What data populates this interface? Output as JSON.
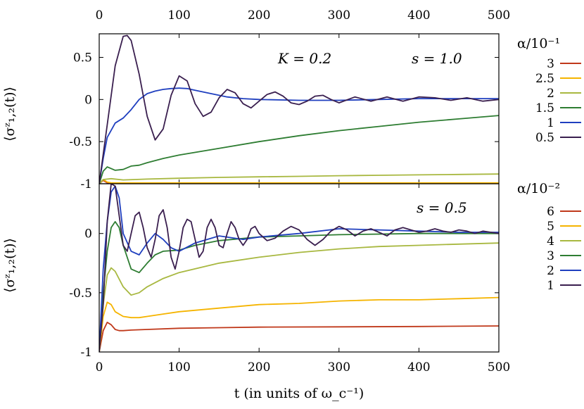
{
  "chart_data": {
    "type": "line",
    "xlabel": "t (in units of ω_c⁻¹)",
    "top_axis_ticks": [
      "0",
      "100",
      "200",
      "300",
      "400",
      "500"
    ],
    "panels": [
      {
        "ylabel": "⟨σᶻ₁,₂(t)⟩",
        "annotations": [
          "K = 0.2",
          "s = 1.0"
        ],
        "xlim": [
          0,
          500
        ],
        "ylim": [
          -1,
          0.78
        ],
        "yticks": [
          -1,
          -0.5,
          0,
          0.5
        ],
        "ytick_labels": [
          "-1",
          "-0.5",
          "0",
          "0.5"
        ],
        "legend_title": "α/10⁻¹",
        "series": [
          {
            "name": "3",
            "color": "#c0391b",
            "x": [
              0,
              5,
              10,
              15,
              500
            ],
            "y": [
              -1,
              -0.96,
              -0.99,
              -0.995,
              -0.995
            ]
          },
          {
            "name": "2.5",
            "color": "#f5b400",
            "x": [
              0,
              5,
              10,
              15,
              500
            ],
            "y": [
              -1,
              -0.95,
              -0.98,
              -0.99,
              -0.99
            ]
          },
          {
            "name": "2",
            "color": "#a8b840",
            "x": [
              0,
              5,
              15,
              30,
              60,
              100,
              150,
              200,
              250,
              300,
              350,
              400,
              450,
              500
            ],
            "y": [
              -1,
              -0.95,
              -0.94,
              -0.955,
              -0.945,
              -0.935,
              -0.925,
              -0.918,
              -0.912,
              -0.905,
              -0.9,
              -0.895,
              -0.89,
              -0.885
            ]
          },
          {
            "name": "1.5",
            "color": "#2e7d32",
            "x": [
              0,
              5,
              10,
              20,
              30,
              40,
              50,
              60,
              80,
              100,
              150,
              200,
              250,
              300,
              350,
              400,
              450,
              500
            ],
            "y": [
              -1,
              -0.85,
              -0.8,
              -0.84,
              -0.83,
              -0.79,
              -0.78,
              -0.75,
              -0.7,
              -0.66,
              -0.58,
              -0.5,
              -0.43,
              -0.37,
              -0.32,
              -0.27,
              -0.23,
              -0.19
            ]
          },
          {
            "name": "1",
            "color": "#1f3fbf",
            "x": [
              0,
              5,
              10,
              20,
              30,
              40,
              50,
              60,
              70,
              80,
              90,
              100,
              110,
              120,
              140,
              160,
              180,
              200,
              250,
              300,
              350,
              400,
              450,
              500
            ],
            "y": [
              -1,
              -0.7,
              -0.45,
              -0.28,
              -0.22,
              -0.12,
              0.0,
              0.07,
              0.1,
              0.12,
              0.13,
              0.135,
              0.13,
              0.11,
              0.07,
              0.03,
              0.01,
              0.0,
              -0.01,
              -0.01,
              0.0,
              0.01,
              0.01,
              0.01
            ]
          },
          {
            "name": "0.5",
            "color": "#3a1f4f",
            "x": [
              0,
              10,
              20,
              30,
              35,
              40,
              50,
              60,
              70,
              80,
              90,
              100,
              110,
              120,
              130,
              140,
              150,
              160,
              170,
              180,
              190,
              200,
              210,
              220,
              230,
              240,
              250,
              260,
              270,
              280,
              290,
              300,
              320,
              340,
              360,
              380,
              400,
              420,
              440,
              460,
              480,
              500
            ],
            "y": [
              -1,
              -0.3,
              0.4,
              0.75,
              0.76,
              0.7,
              0.3,
              -0.2,
              -0.48,
              -0.35,
              0.05,
              0.28,
              0.22,
              -0.05,
              -0.2,
              -0.15,
              0.02,
              0.12,
              0.08,
              -0.05,
              -0.1,
              -0.02,
              0.06,
              0.09,
              0.04,
              -0.04,
              -0.06,
              -0.02,
              0.04,
              0.05,
              0.0,
              -0.04,
              0.03,
              -0.02,
              0.03,
              -0.02,
              0.03,
              0.02,
              -0.01,
              0.02,
              -0.02,
              0.0
            ]
          }
        ]
      },
      {
        "ylabel": "⟨σᶻ₁,₂(t)⟩",
        "annotations": [
          "s = 0.5"
        ],
        "xlim": [
          0,
          500
        ],
        "ylim": [
          -1,
          0.42
        ],
        "yticks": [
          -1,
          -0.5,
          0
        ],
        "ytick_labels": [
          "-1",
          "-0.5",
          "0"
        ],
        "legend_title": "α/10⁻²",
        "series": [
          {
            "name": "6",
            "color": "#c0391b",
            "x": [
              0,
              5,
              10,
              15,
              20,
              25,
              30,
              40,
              60,
              100,
              150,
              200,
              300,
              400,
              500
            ],
            "y": [
              -1,
              -0.82,
              -0.75,
              -0.77,
              -0.81,
              -0.82,
              -0.82,
              -0.815,
              -0.81,
              -0.8,
              -0.795,
              -0.79,
              -0.788,
              -0.785,
              -0.78
            ]
          },
          {
            "name": "5",
            "color": "#f5b400",
            "x": [
              0,
              5,
              10,
              15,
              20,
              30,
              40,
              50,
              60,
              80,
              100,
              150,
              200,
              250,
              300,
              350,
              400,
              450,
              500
            ],
            "y": [
              -1,
              -0.7,
              -0.58,
              -0.6,
              -0.66,
              -0.7,
              -0.71,
              -0.71,
              -0.7,
              -0.68,
              -0.66,
              -0.63,
              -0.6,
              -0.59,
              -0.57,
              -0.56,
              -0.56,
              -0.55,
              -0.54
            ]
          },
          {
            "name": "4",
            "color": "#a8b840",
            "x": [
              0,
              5,
              10,
              15,
              20,
              30,
              40,
              50,
              60,
              80,
              100,
              150,
              200,
              250,
              300,
              350,
              400,
              450,
              500
            ],
            "y": [
              -1,
              -0.6,
              -0.35,
              -0.29,
              -0.32,
              -0.45,
              -0.52,
              -0.5,
              -0.45,
              -0.38,
              -0.33,
              -0.25,
              -0.2,
              -0.16,
              -0.13,
              -0.11,
              -0.1,
              -0.09,
              -0.08
            ]
          },
          {
            "name": "3",
            "color": "#2e7d32",
            "x": [
              0,
              5,
              10,
              15,
              20,
              25,
              30,
              40,
              50,
              60,
              70,
              80,
              100,
              120,
              150,
              200,
              250,
              300,
              400,
              500
            ],
            "y": [
              -1,
              -0.5,
              -0.15,
              0.05,
              0.1,
              0.05,
              -0.1,
              -0.3,
              -0.33,
              -0.25,
              -0.18,
              -0.15,
              -0.14,
              -0.1,
              -0.06,
              -0.03,
              -0.02,
              -0.01,
              0.0,
              0.0
            ]
          },
          {
            "name": "2",
            "color": "#1f3fbf",
            "x": [
              0,
              5,
              10,
              15,
              20,
              25,
              30,
              40,
              50,
              60,
              70,
              80,
              90,
              100,
              120,
              150,
              180,
              200,
              250,
              300,
              350,
              400,
              450,
              500
            ],
            "y": [
              -1,
              -0.3,
              0.1,
              0.35,
              0.4,
              0.3,
              0.0,
              -0.15,
              -0.18,
              -0.08,
              0.0,
              -0.05,
              -0.12,
              -0.15,
              -0.08,
              -0.02,
              -0.05,
              -0.03,
              0.0,
              0.04,
              0.03,
              0.02,
              0.01,
              0.01
            ]
          },
          {
            "name": "1",
            "color": "#3a1f4f",
            "x": [
              0,
              5,
              10,
              15,
              20,
              25,
              30,
              35,
              40,
              45,
              50,
              55,
              60,
              65,
              70,
              75,
              80,
              85,
              90,
              95,
              100,
              105,
              110,
              115,
              120,
              125,
              130,
              135,
              140,
              145,
              150,
              155,
              160,
              165,
              170,
              175,
              180,
              185,
              190,
              195,
              200,
              210,
              220,
              230,
              240,
              250,
              260,
              270,
              280,
              290,
              300,
              310,
              320,
              330,
              340,
              350,
              360,
              370,
              380,
              390,
              400,
              410,
              420,
              430,
              440,
              450,
              460,
              470,
              480,
              490,
              500
            ],
            "y": [
              -1,
              -0.6,
              0.1,
              0.42,
              0.4,
              0.15,
              -0.1,
              -0.15,
              0.0,
              0.15,
              0.18,
              0.05,
              -0.12,
              -0.2,
              -0.05,
              0.15,
              0.2,
              0.05,
              -0.2,
              -0.3,
              -0.15,
              0.05,
              0.12,
              0.1,
              -0.05,
              -0.2,
              -0.15,
              0.05,
              0.12,
              0.05,
              -0.1,
              -0.12,
              0.0,
              0.1,
              0.05,
              -0.05,
              -0.1,
              -0.05,
              0.04,
              0.06,
              0.0,
              -0.06,
              -0.04,
              0.02,
              0.06,
              0.03,
              -0.05,
              -0.1,
              -0.05,
              0.02,
              0.06,
              0.03,
              -0.02,
              0.02,
              0.04,
              0.01,
              -0.02,
              0.03,
              0.05,
              0.03,
              0.01,
              0.02,
              0.04,
              0.02,
              0.01,
              0.03,
              0.02,
              0.0,
              0.02,
              0.01,
              0.0
            ]
          }
        ]
      }
    ]
  }
}
